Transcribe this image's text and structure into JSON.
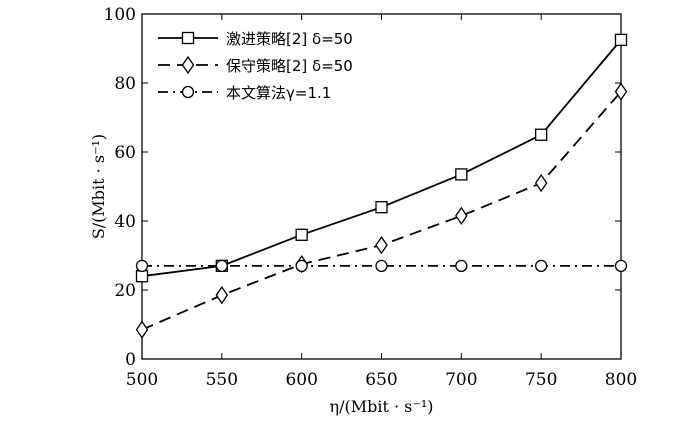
{
  "chart_data": {
    "type": "line",
    "x": [
      500,
      550,
      600,
      650,
      700,
      750,
      800
    ],
    "xlim": [
      500,
      800
    ],
    "ylim": [
      0,
      100
    ],
    "xticks": [
      "500",
      "550",
      "600",
      "650",
      "700",
      "750",
      "800"
    ],
    "yticks": [
      "0",
      "20",
      "40",
      "60",
      "80",
      "100"
    ],
    "xlabel": "η/(Mbit · s⁻¹)",
    "ylabel": "S/(Mbit · s⁻¹)",
    "grid": false,
    "legend": "top-left",
    "series": [
      {
        "name": "激进策略[2] δ=50",
        "marker": "square",
        "line": "solid",
        "values": [
          24,
          27,
          36,
          44,
          53.5,
          65,
          92.5
        ]
      },
      {
        "name": "保守策略[2] δ=50",
        "marker": "diamond",
        "line": "dashed",
        "values": [
          8.5,
          18.5,
          27.5,
          33,
          41.5,
          51,
          77.5
        ]
      },
      {
        "name": "本文算法γ=1.1",
        "marker": "circle",
        "line": "dashdot",
        "values": [
          27,
          27,
          27,
          27,
          27,
          27,
          27
        ]
      }
    ]
  }
}
